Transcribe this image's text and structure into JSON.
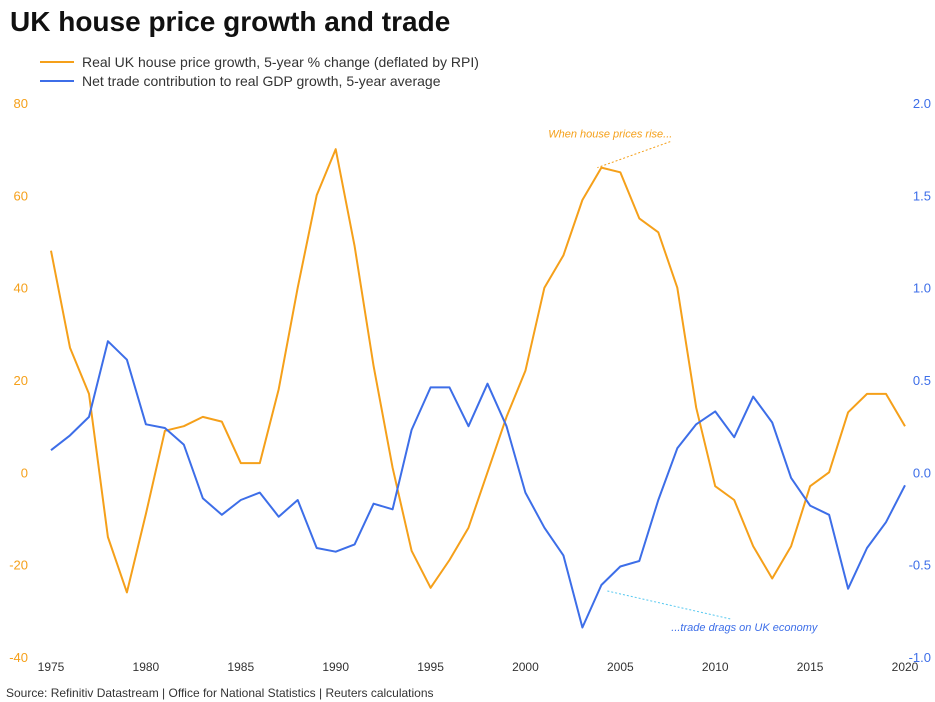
{
  "chart_data": {
    "type": "line",
    "title": "UK house price growth and trade",
    "source": "Source: Refinitiv Datastream | Office for National Statistics | Reuters calculations",
    "colors": {
      "house": "#f5a01a",
      "trade": "#3d6ee8"
    },
    "x_ticks": [
      "1975",
      "1980",
      "1985",
      "1990",
      "1995",
      "2000",
      "2005",
      "2010",
      "2015",
      "2020"
    ],
    "xlim": [
      1975,
      2020
    ],
    "y_left": {
      "ylim": [
        -40,
        80
      ],
      "ticks": [
        "-40",
        "-20",
        "0",
        "20",
        "40",
        "60",
        "80"
      ]
    },
    "y_right": {
      "ylim": [
        -1.0,
        2.0
      ],
      "ticks": [
        "-1.0",
        "-0.5",
        "0.0",
        "0.5",
        "1.0",
        "1.5",
        "2.0"
      ]
    },
    "series": [
      {
        "name": "Real UK house price growth, 5-year % change (deflated by RPI)",
        "axis": "left",
        "x": [
          1975,
          1976,
          1977,
          1978,
          1979,
          1980,
          1981,
          1982,
          1983,
          1984,
          1985,
          1986,
          1987,
          1988,
          1989,
          1990,
          1991,
          1992,
          1993,
          1994,
          1995,
          1996,
          1997,
          1998,
          1999,
          2000,
          2001,
          2002,
          2003,
          2004,
          2005,
          2006,
          2007,
          2008,
          2009,
          2010,
          2011,
          2012,
          2013,
          2014,
          2015,
          2016,
          2017,
          2018,
          2019,
          2020
        ],
        "values": [
          48,
          27,
          17,
          -14,
          -26,
          -9,
          9,
          10,
          12,
          11,
          2,
          2,
          18,
          40,
          60,
          70,
          49,
          23,
          1,
          -17,
          -25,
          -19,
          -12,
          0,
          12,
          22,
          40,
          47,
          59,
          66,
          65,
          55,
          52,
          40,
          14,
          -3,
          -6,
          -16,
          -23,
          -16,
          -3,
          0,
          13,
          17,
          17,
          10
        ]
      },
      {
        "name": "Net trade contribution to real GDP growth, 5-year average",
        "axis": "right",
        "x": [
          1975,
          1976,
          1977,
          1978,
          1979,
          1980,
          1981,
          1982,
          1983,
          1984,
          1985,
          1986,
          1987,
          1988,
          1989,
          1990,
          1991,
          1992,
          1993,
          1994,
          1995,
          1996,
          1997,
          1998,
          1999,
          2000,
          2001,
          2002,
          2003,
          2004,
          2005,
          2006,
          2007,
          2008,
          2009,
          2010,
          2011,
          2012,
          2013,
          2014,
          2015,
          2016,
          2017,
          2018,
          2019,
          2020
        ],
        "values": [
          0.12,
          0.2,
          0.3,
          0.71,
          0.61,
          0.26,
          0.24,
          0.15,
          -0.14,
          -0.23,
          -0.15,
          -0.11,
          -0.24,
          -0.15,
          -0.41,
          -0.43,
          -0.39,
          -0.17,
          -0.2,
          0.23,
          0.46,
          0.46,
          0.25,
          0.48,
          0.25,
          -0.11,
          -0.3,
          -0.45,
          -0.84,
          -0.61,
          -0.51,
          -0.48,
          -0.15,
          0.13,
          0.26,
          0.33,
          0.19,
          0.41,
          0.27,
          -0.03,
          -0.18,
          -0.23,
          -0.63,
          -0.41,
          -0.27,
          -0.07
        ]
      }
    ],
    "annotations": [
      {
        "text": "When house prices rise...",
        "series": 0,
        "anchor_x": 2004,
        "anchor_y": 66,
        "label_x": 2001.2,
        "label_y": 72.5
      },
      {
        "text": "...trade drags on UK economy",
        "series": 1,
        "anchor_x": 2004,
        "anchor_y": -0.61,
        "label_x": 2008.0,
        "label_y": -0.86
      }
    ]
  }
}
